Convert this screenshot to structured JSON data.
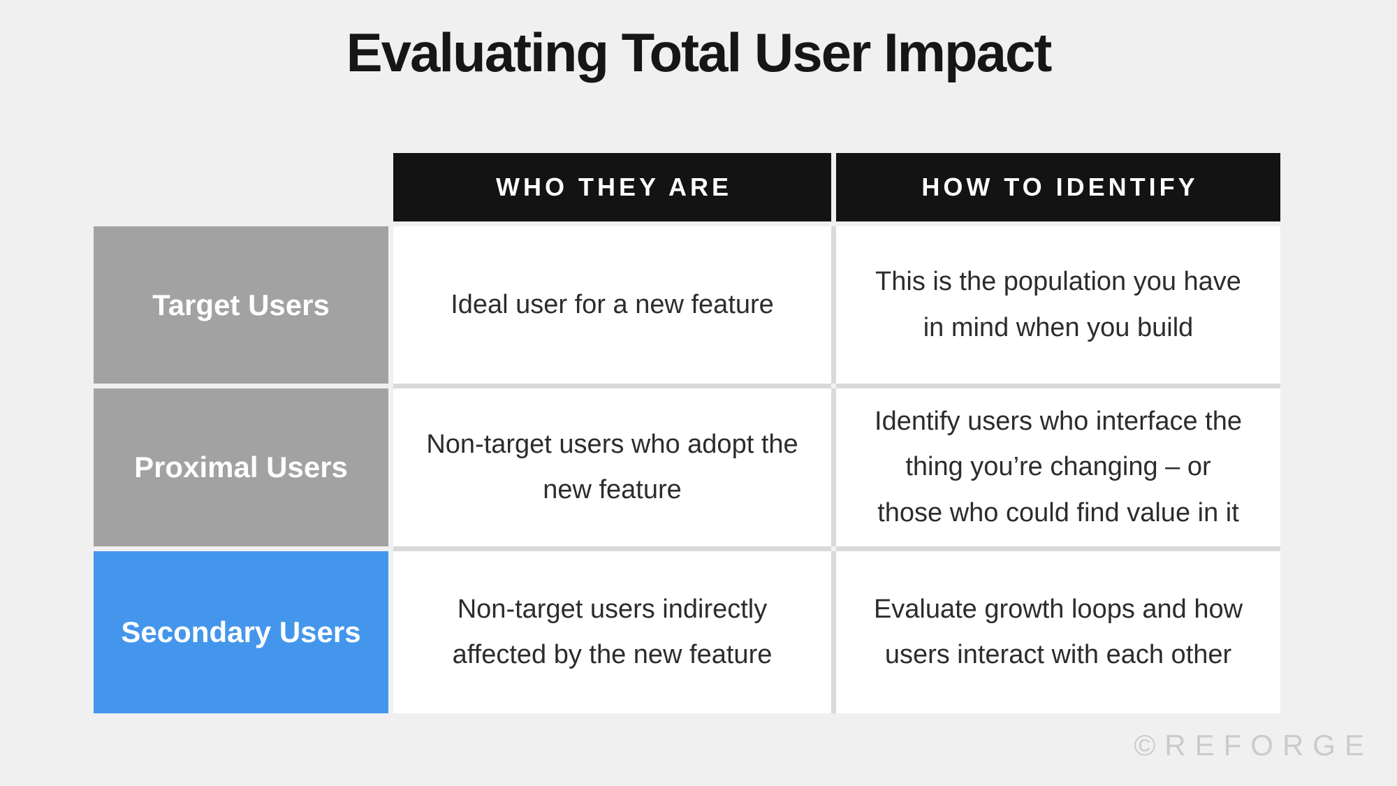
{
  "page": {
    "title": "Evaluating Total User Impact",
    "watermark": "©REFORGE",
    "background_color": "#f0f0f1"
  },
  "table": {
    "column_headers": [
      {
        "label": "WHO THEY ARE"
      },
      {
        "label": "HOW TO IDENTIFY"
      }
    ],
    "header_bg_color": "#131313",
    "rows": [
      {
        "label": "Target Users",
        "label_color": "#a2a2a2",
        "who_they_are": "Ideal user for a new feature",
        "how_to_identify": "This is the population you have\nin mind when you build"
      },
      {
        "label": "Proximal Users",
        "label_color": "#a2a2a2",
        "who_they_are": "Non-target users who adopt the\nnew feature",
        "how_to_identify": "Identify users who interface the\nthing you’re changing – or\nthose who could find value in it"
      },
      {
        "label": "Secondary Users",
        "label_color": "#4496ec",
        "who_they_are": "Non-target users indirectly\naffected by the new feature",
        "how_to_identify": "Evaluate growth loops and how\nusers interact with each other"
      }
    ]
  }
}
